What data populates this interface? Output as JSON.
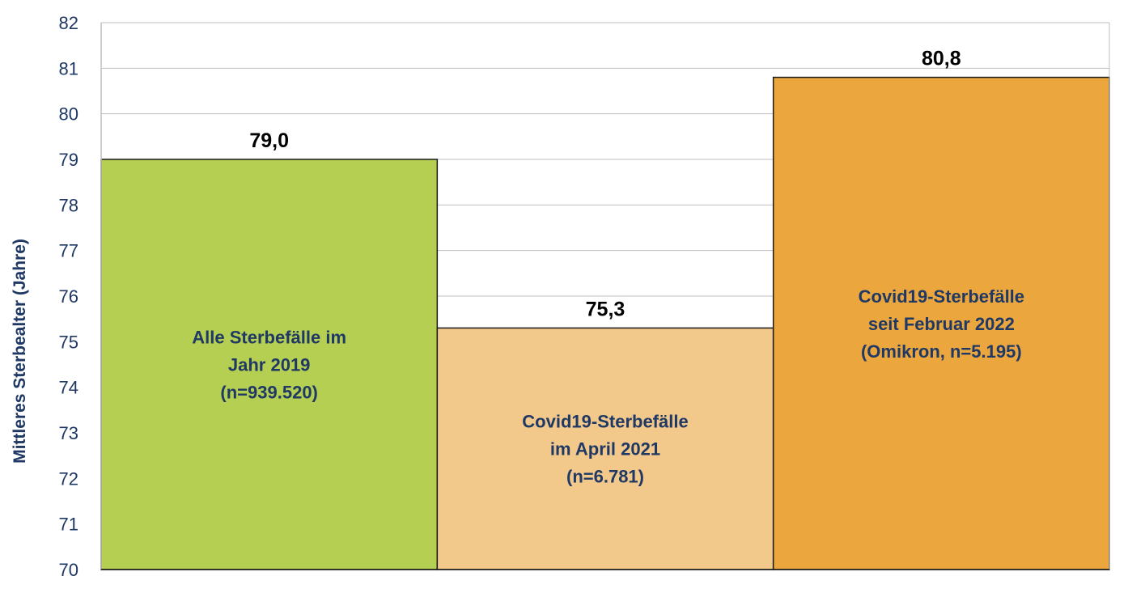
{
  "chart_data": {
    "type": "bar",
    "title": "",
    "xlabel": "",
    "ylabel": "Mittleres Sterbealter (Jahre)",
    "ylim": [
      70,
      82
    ],
    "yticks": [
      "70",
      "71",
      "72",
      "73",
      "74",
      "75",
      "76",
      "77",
      "78",
      "79",
      "80",
      "81",
      "82"
    ],
    "grid": true,
    "categories": [
      [
        "Alle Sterbefälle im",
        "Jahr 2019",
        "(n=939.520)"
      ],
      [
        "Covid19-Sterbefälle",
        "im April 2021",
        "(n=6.781)"
      ],
      [
        "Covid19-Sterbefälle",
        "seit Februar 2022",
        "(Omikron, n=5.195)"
      ]
    ],
    "values": [
      79.0,
      75.3,
      80.8
    ],
    "value_labels": [
      "79,0",
      "75,3",
      "80,8"
    ],
    "colors": [
      "#b4cf51",
      "#f2c98b",
      "#eba73e"
    ],
    "text_color": "#1f3864",
    "grid_color": "#bfbfbf"
  }
}
